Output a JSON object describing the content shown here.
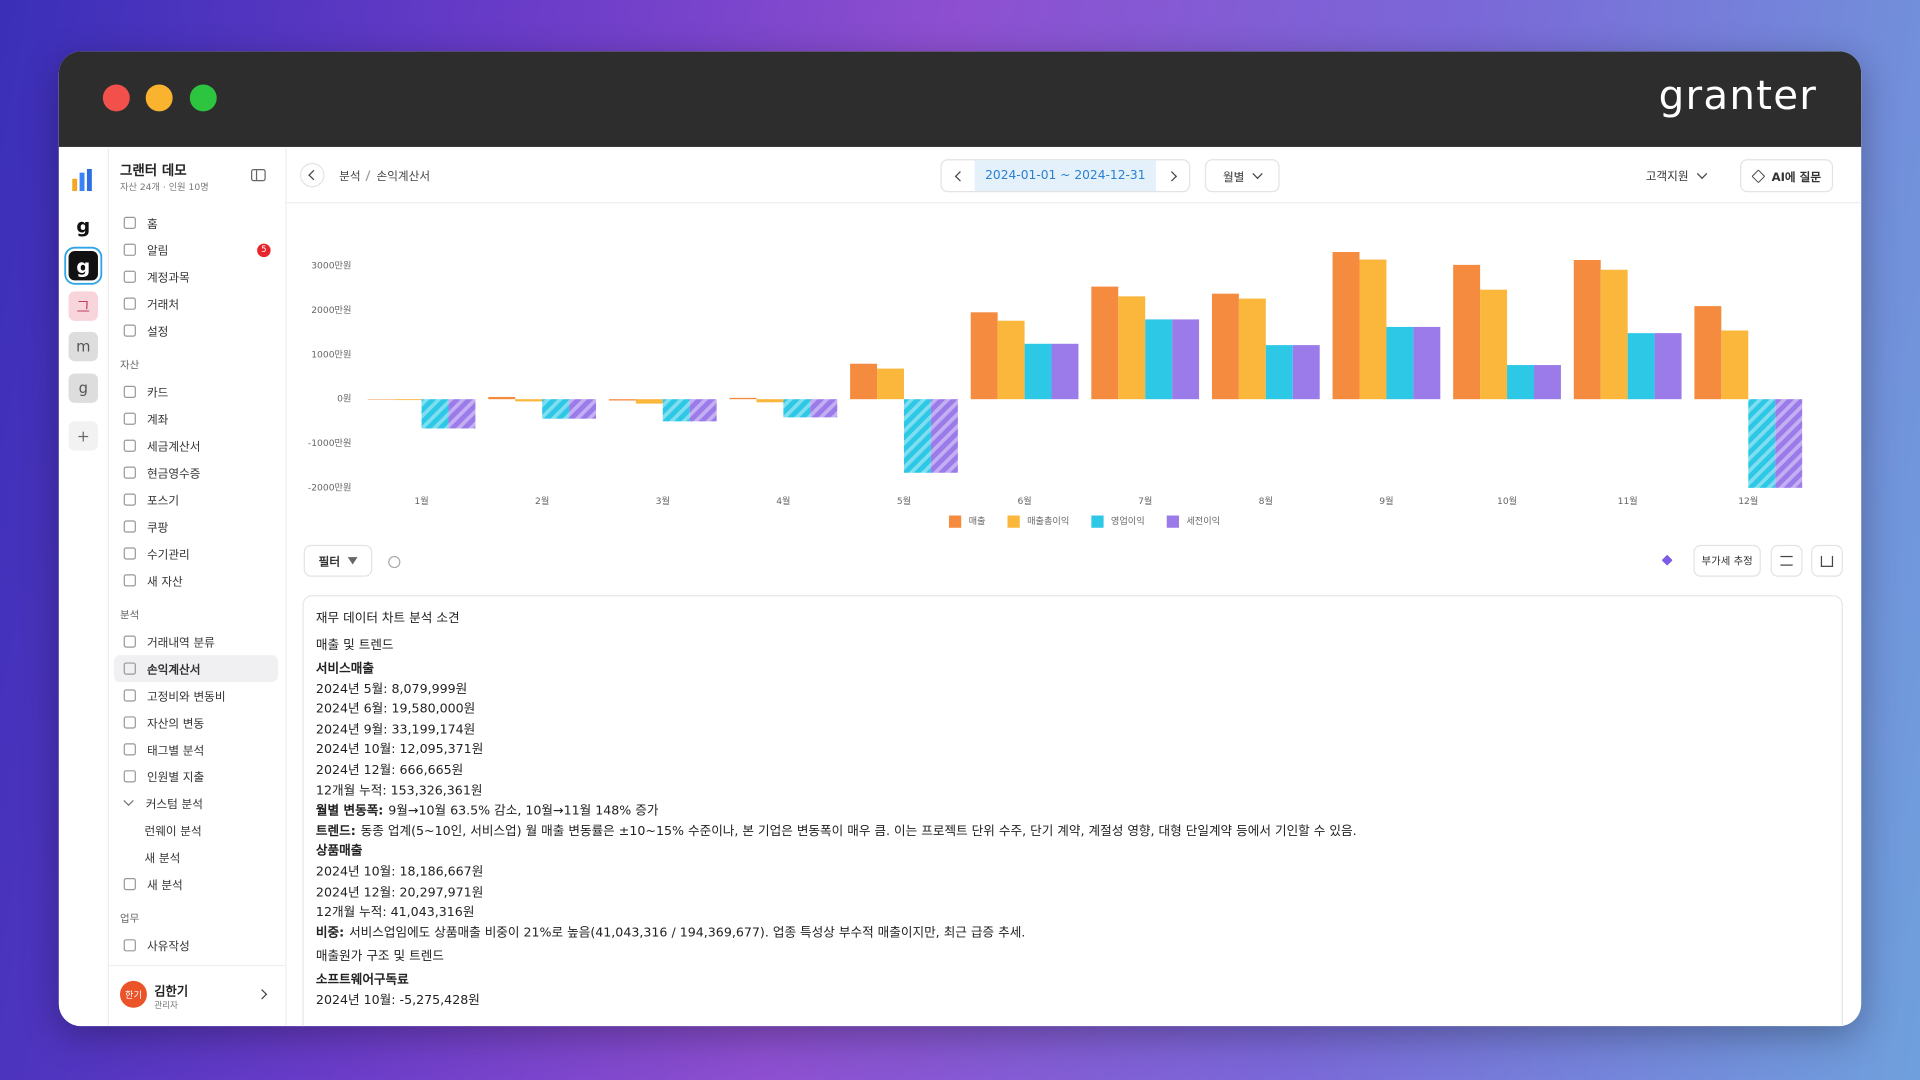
{
  "window": {
    "brand": "granter"
  },
  "rail": [
    {
      "label": "g"
    },
    {
      "label": "g"
    },
    {
      "label": "그"
    },
    {
      "label": "m"
    },
    {
      "label": "g"
    }
  ],
  "workspace": {
    "name": "그랜터 데모",
    "meta": "자산 24개 · 인원 10명"
  },
  "nav": {
    "top": [
      {
        "label": "홈"
      },
      {
        "label": "알림",
        "badge": 5
      },
      {
        "label": "계정과목"
      },
      {
        "label": "거래처"
      },
      {
        "label": "설정"
      }
    ],
    "sections": [
      {
        "title": "자산",
        "items": [
          {
            "label": "카드"
          },
          {
            "label": "계좌"
          },
          {
            "label": "세금계산서"
          },
          {
            "label": "현금영수증"
          },
          {
            "label": "포스기"
          },
          {
            "label": "쿠팡"
          },
          {
            "label": "수기관리"
          },
          {
            "label": "새 자산"
          }
        ]
      },
      {
        "title": "분석",
        "items": [
          {
            "label": "거래내역 분류"
          },
          {
            "label": "손익계산서",
            "active": true
          },
          {
            "label": "고정비와 변동비"
          },
          {
            "label": "자산의 변동"
          },
          {
            "label": "태그별 분석"
          },
          {
            "label": "인원별 지출"
          },
          {
            "label": "커스텀 분석",
            "expanded": true,
            "children": [
              {
                "label": "런웨이 분석"
              },
              {
                "label": "새 분석"
              }
            ]
          },
          {
            "label": "새 분석"
          }
        ]
      },
      {
        "title": "업무",
        "items": [
          {
            "label": "사유작성"
          }
        ]
      }
    ]
  },
  "user": {
    "avatar": "한기",
    "name": "김한기",
    "role": "관리자"
  },
  "breadcrumb": [
    "분석",
    "손익계산서"
  ],
  "date_range": "2024-01-01 ~ 2024-12-31",
  "period": "월별",
  "support": "고객지원",
  "ai_button": "AI에 질문",
  "chart_data": {
    "type": "bar",
    "categories": [
      "1월",
      "2월",
      "3월",
      "4월",
      "5월",
      "6월",
      "7월",
      "8월",
      "9월",
      "10월",
      "11월",
      "12월"
    ],
    "series": [
      {
        "name": "매출",
        "color": "#f58b3f",
        "values": [
          -10,
          50,
          -30,
          30,
          800,
          1960,
          2540,
          2380,
          3320,
          3030,
          3140,
          2100
        ]
      },
      {
        "name": "매출총이익",
        "color": "#fbb73c",
        "values": [
          -20,
          -50,
          -100,
          -70,
          690,
          1770,
          2320,
          2270,
          3150,
          2470,
          2920,
          1550
        ]
      },
      {
        "name": "영업이익",
        "color": "#2cc8e6",
        "values": [
          -660,
          -440,
          -500,
          -410,
          -1660,
          1250,
          1800,
          1220,
          1630,
          770,
          1490,
          -2000
        ]
      },
      {
        "name": "세전이익",
        "color": "#9b7bea",
        "values": [
          -660,
          -440,
          -500,
          -410,
          -1660,
          1250,
          1800,
          1220,
          1630,
          770,
          1490,
          -2000
        ]
      }
    ],
    "ylim": [
      -2000,
      3500
    ],
    "yticks": [
      {
        "value": 3000,
        "label": "3000만원"
      },
      {
        "value": 2000,
        "label": "2000만원"
      },
      {
        "value": 1000,
        "label": "1000만원"
      },
      {
        "value": 0,
        "label": "0원"
      },
      {
        "value": -1000,
        "label": "-1000만원"
      },
      {
        "value": -2000,
        "label": "-2000만원"
      }
    ],
    "grid": false,
    "legend": "bottom"
  },
  "toolbar": {
    "filter": "필터",
    "vat": "부가세 추정"
  },
  "analysis": [
    {
      "kind": "paragraph",
      "text": "재무 데이터 차트 분석 소견"
    },
    {
      "kind": "paragraph",
      "text": "매출 및 트렌드"
    },
    {
      "kind": "heading",
      "text": "서비스매출"
    },
    {
      "kind": "line",
      "text": "2024년 5월: 8,079,999원"
    },
    {
      "kind": "line",
      "text": "2024년 6월: 19,580,000원"
    },
    {
      "kind": "line",
      "text": "2024년 9월: 33,199,174원"
    },
    {
      "kind": "line",
      "text": "2024년 10월: 12,095,371원"
    },
    {
      "kind": "line",
      "text": "2024년 12월: 666,665원"
    },
    {
      "kind": "line",
      "text": "12개월 누적: 153,326,361원"
    },
    {
      "kind": "line",
      "label": "월별 변동폭:",
      "text": "9월→10월 63.5% 감소, 10월→11월 148% 증가"
    },
    {
      "kind": "line",
      "label": "트렌드:",
      "text": "동종 업계(5~10인, 서비스업) 월 매출 변동률은 ±10~15% 수준이나, 본 기업은 변동폭이 매우 큼. 이는 프로젝트 단위 수주, 단기 계약, 계절성 영향, 대형 단일계약 등에서 기인할 수 있음."
    },
    {
      "kind": "heading",
      "text": "상품매출"
    },
    {
      "kind": "line",
      "text": "2024년 10월: 18,186,667원"
    },
    {
      "kind": "line",
      "text": "2024년 12월: 20,297,971원"
    },
    {
      "kind": "line",
      "text": "12개월 누적: 41,043,316원"
    },
    {
      "kind": "line",
      "label": "비중:",
      "text": "서비스업임에도 상품매출 비중이 21%로 높음(41,043,316 / 194,369,677). 업종 특성상 부수적 매출이지만, 최근 급증 추세."
    },
    {
      "kind": "paragraph",
      "text": "매출원가 구조 및 트렌드"
    },
    {
      "kind": "heading",
      "text": "소프트웨어구독료"
    },
    {
      "kind": "line",
      "text": "2024년 10월: -5,275,428원"
    }
  ]
}
